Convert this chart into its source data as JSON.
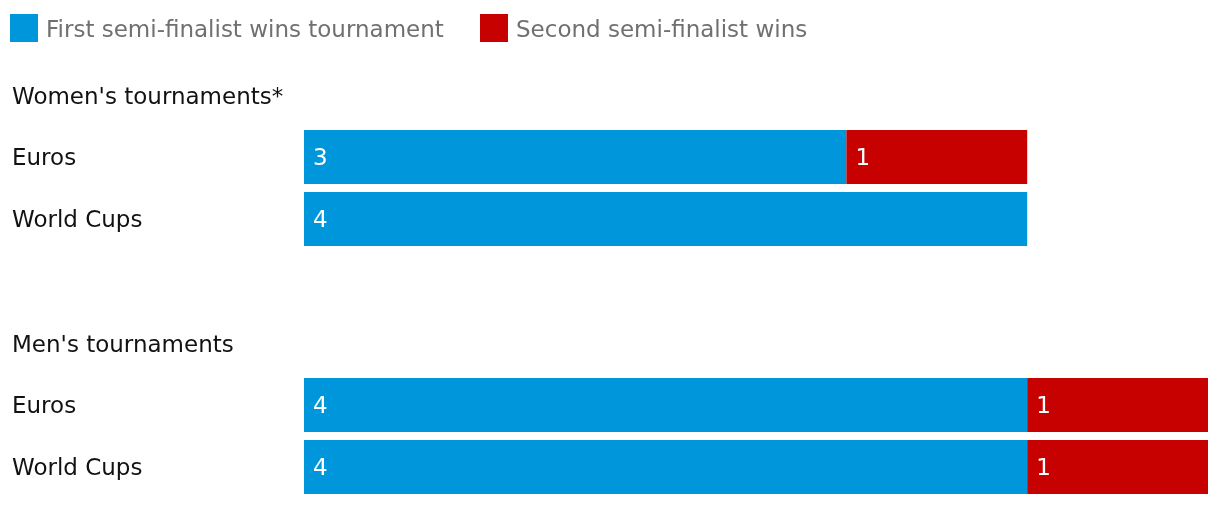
{
  "chart_data": [
    {
      "type": "bar",
      "orientation": "horizontal",
      "stacked": true,
      "title": "Women's tournaments*",
      "categories": [
        "Euros",
        "World Cups"
      ],
      "tick_labels": "y",
      "legend": "top left",
      "series": [
        {
          "name": "First semi-finalist wins tournament",
          "color": "#0096db",
          "values": [
            3,
            4
          ],
          "value_labels": [
            "3",
            "4"
          ]
        },
        {
          "name": "Second semi-finalist wins",
          "color": "#c70000",
          "values": [
            1,
            0
          ],
          "value_labels": [
            "1",
            null
          ]
        }
      ]
    },
    {
      "type": "bar",
      "orientation": "horizontal",
      "stacked": true,
      "title": "Men's tournaments",
      "categories": [
        "Euros",
        "World Cups"
      ],
      "tick_labels": "y",
      "series": [
        {
          "color": "#0096db",
          "values": [
            4,
            4
          ],
          "value_labels": [
            "4",
            "4"
          ]
        },
        {
          "color": "#c70000",
          "values": [
            1,
            1
          ],
          "value_labels": [
            "1",
            "1"
          ]
        }
      ]
    }
  ]
}
